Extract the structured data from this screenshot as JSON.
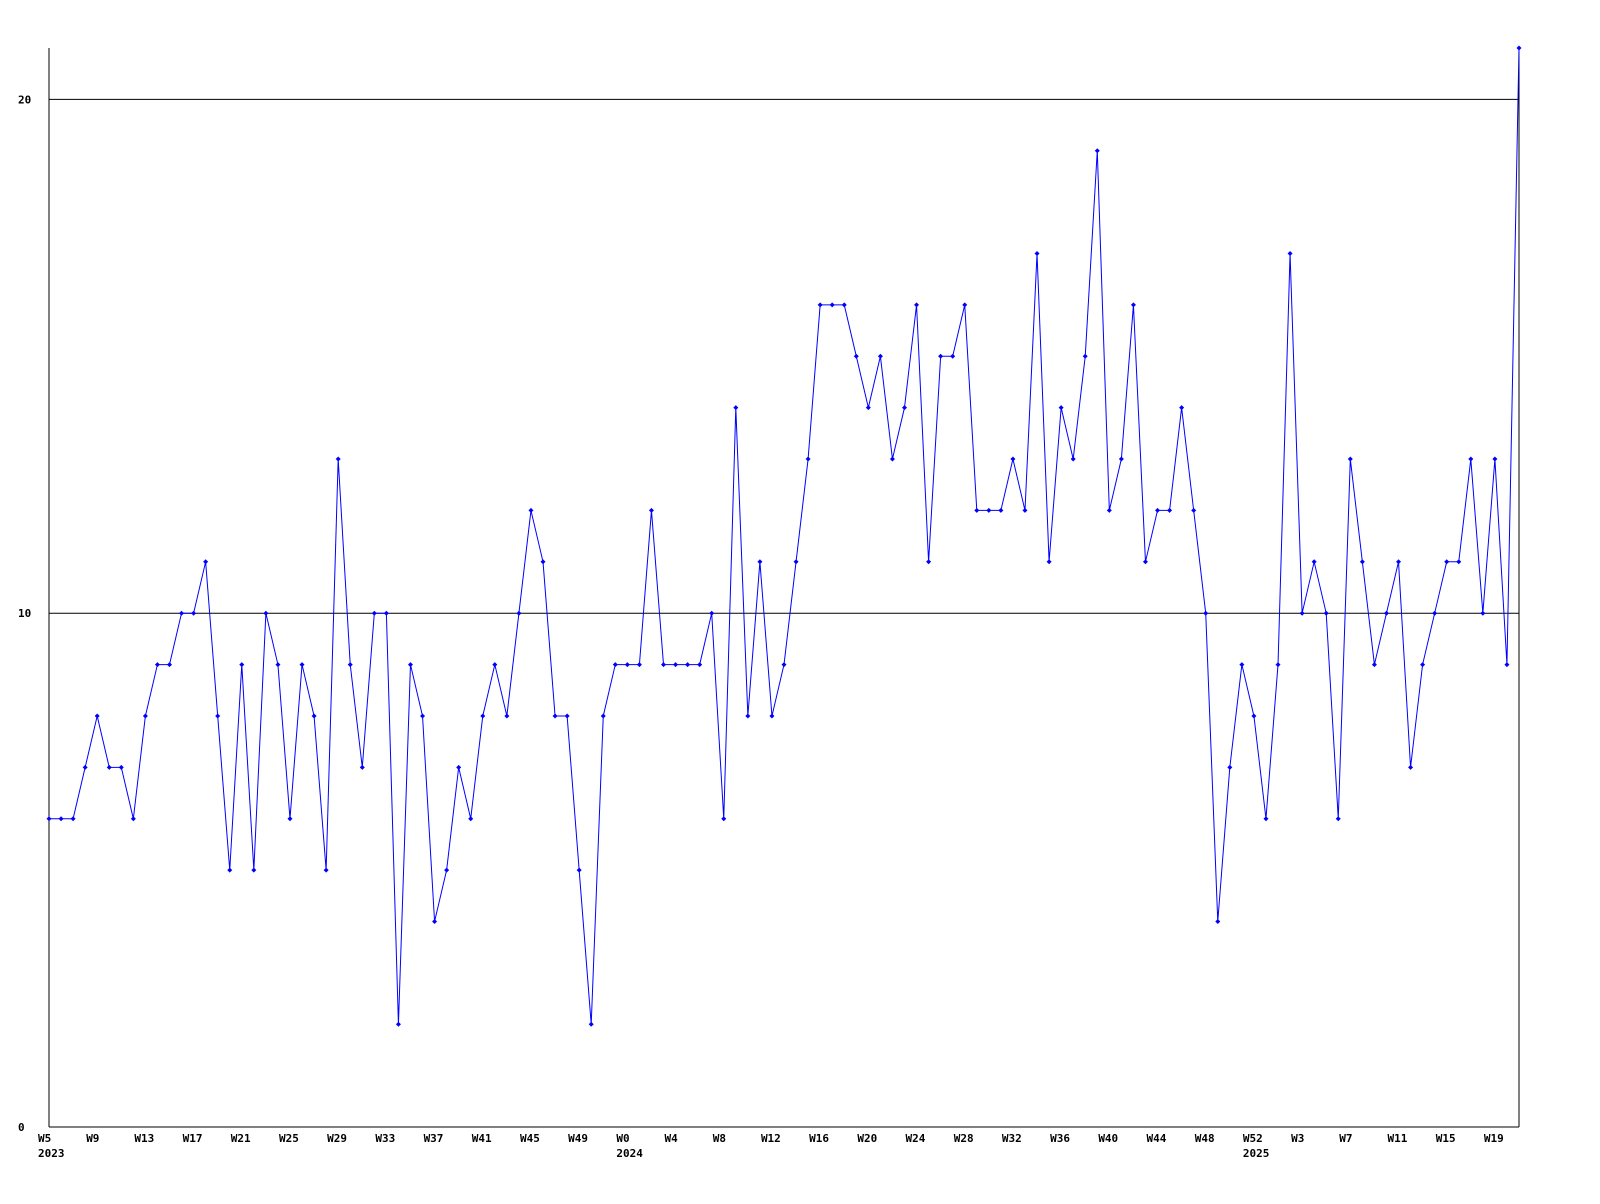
{
  "chart_data": {
    "type": "line",
    "categories": [
      "W5",
      null,
      null,
      null,
      "W9",
      null,
      null,
      null,
      "W13",
      null,
      null,
      null,
      "W17",
      null,
      null,
      null,
      "W21",
      null,
      null,
      null,
      "W25",
      null,
      null,
      null,
      "W29",
      null,
      null,
      null,
      "W33",
      null,
      null,
      null,
      "W37",
      null,
      null,
      null,
      "W41",
      null,
      null,
      null,
      "W45",
      null,
      null,
      null,
      "W49",
      null,
      null,
      null,
      "W0",
      null,
      null,
      null,
      "W4",
      null,
      null,
      null,
      "W8",
      null,
      null,
      null,
      "W12",
      null,
      null,
      null,
      "W16",
      null,
      null,
      null,
      "W20",
      null,
      null,
      null,
      "W24",
      null,
      null,
      null,
      "W28",
      null,
      null,
      null,
      "W32",
      null,
      null,
      null,
      "W36",
      null,
      null,
      null,
      "W40",
      null,
      null,
      null,
      "W44",
      null,
      null,
      null,
      "W48",
      null,
      null,
      null,
      "W52",
      null,
      null,
      null,
      "W3",
      null,
      null,
      null,
      "W7",
      null,
      null,
      null,
      "W11",
      null,
      null,
      null,
      "W15",
      null,
      null,
      null,
      "W19",
      null,
      null
    ],
    "category_years": [
      "2023",
      null,
      null,
      null,
      null,
      null,
      null,
      null,
      null,
      null,
      null,
      null,
      null,
      null,
      null,
      null,
      null,
      null,
      null,
      null,
      null,
      null,
      null,
      null,
      null,
      null,
      null,
      null,
      null,
      null,
      null,
      null,
      null,
      null,
      null,
      null,
      null,
      null,
      null,
      null,
      null,
      null,
      null,
      null,
      null,
      null,
      null,
      null,
      "2024",
      null,
      null,
      null,
      null,
      null,
      null,
      null,
      null,
      null,
      null,
      null,
      null,
      null,
      null,
      null,
      null,
      null,
      null,
      null,
      null,
      null,
      null,
      null,
      null,
      null,
      null,
      null,
      null,
      null,
      null,
      null,
      null,
      null,
      null,
      null,
      null,
      null,
      null,
      null,
      null,
      null,
      null,
      null,
      null,
      null,
      null,
      null,
      null,
      null,
      null,
      null,
      "2025",
      null,
      null,
      null,
      null,
      null,
      null,
      null,
      null,
      null,
      null,
      null,
      null,
      null,
      null,
      null,
      null,
      null,
      null,
      null,
      null,
      null,
      null
    ],
    "series": [
      {
        "color": "#0000ff",
        "values": [
          6,
          6,
          6,
          7,
          8,
          7,
          7,
          6,
          8,
          9,
          9,
          10,
          10,
          11,
          8,
          5,
          9,
          5,
          10,
          9,
          6,
          9,
          8,
          5,
          13,
          9,
          7,
          10,
          10,
          2,
          9,
          8,
          4,
          5,
          7,
          6,
          8,
          9,
          8,
          10,
          12,
          11,
          8,
          8,
          5,
          2,
          8,
          9,
          9,
          9,
          12,
          9,
          9,
          9,
          9,
          10,
          6,
          14,
          8,
          11,
          8,
          9,
          11,
          13,
          16,
          16,
          16,
          15,
          14,
          15,
          13,
          14,
          16,
          11,
          15,
          15,
          16,
          12,
          12,
          12,
          13,
          12,
          17,
          11,
          14,
          13,
          15,
          19,
          12,
          13,
          16,
          11,
          12,
          12,
          14,
          12,
          10,
          4,
          7,
          9,
          8,
          6,
          9,
          17,
          10,
          11,
          10,
          6,
          13,
          11,
          9,
          10,
          11,
          7,
          9,
          10,
          11,
          11,
          13,
          10,
          13,
          9,
          21
        ]
      }
    ],
    "ylim": [
      0,
      21
    ],
    "yticks": [
      0,
      10,
      20
    ],
    "grid": true
  }
}
